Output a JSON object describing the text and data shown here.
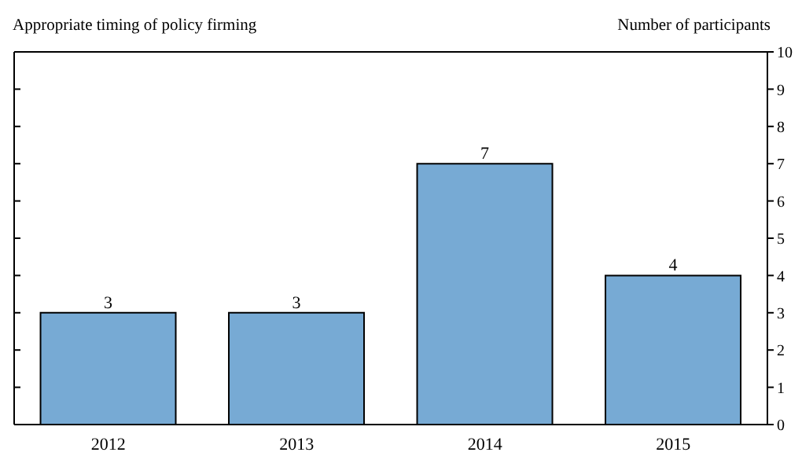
{
  "chart_data": {
    "type": "bar",
    "title": "Appropriate timing of policy firming",
    "ylabel": "Number of participants",
    "categories": [
      "2012",
      "2013",
      "2014",
      "2015"
    ],
    "values": [
      3,
      3,
      7,
      4
    ],
    "color": "#77aad4",
    "ylim": [
      0,
      10
    ],
    "yticks": [
      0,
      1,
      2,
      3,
      4,
      5,
      6,
      7,
      8,
      9,
      10
    ],
    "data_labels": true,
    "grid": false
  }
}
